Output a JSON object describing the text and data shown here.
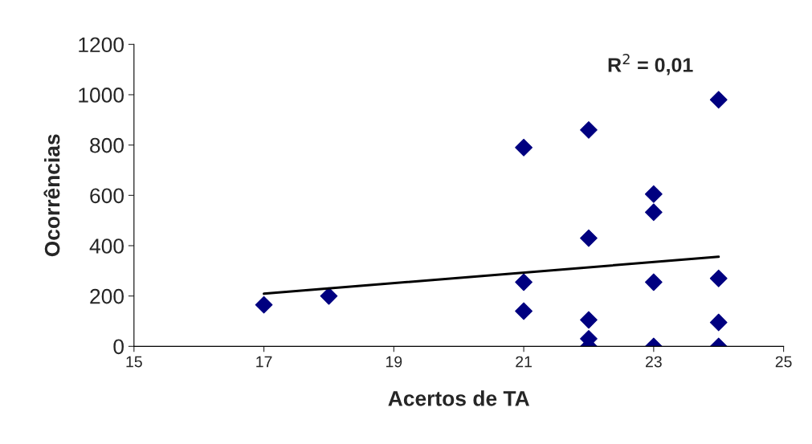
{
  "chart_data": {
    "type": "scatter",
    "xlabel": "Acertos de TA",
    "ylabel": "Ocorrências",
    "annotations": [
      "R$^{2}$ = 0,01"
    ],
    "series": [
      {
        "color": "#000080",
        "marker": "diamond",
        "x": [
          17,
          18,
          21,
          21,
          21,
          22,
          22,
          22,
          22,
          22,
          23,
          23,
          23,
          23,
          24,
          24,
          24,
          24
        ],
        "values": [
          165,
          200,
          790,
          255,
          140,
          860,
          430,
          105,
          30,
          0,
          605,
          533,
          255,
          0,
          980,
          270,
          95,
          0
        ]
      },
      {
        "type": "line",
        "color": "#000000",
        "marker": "none",
        "line_style": "solid",
        "x": [
          17,
          24
        ],
        "values": [
          209,
          356
        ]
      }
    ],
    "xlim": [
      15,
      25
    ],
    "xticks": [
      15,
      17,
      19,
      21,
      23,
      25
    ],
    "ylim": [
      0,
      1200
    ],
    "yticks": [
      0,
      200,
      400,
      600,
      800,
      1000,
      1200
    ],
    "grid": false,
    "legend": false
  }
}
